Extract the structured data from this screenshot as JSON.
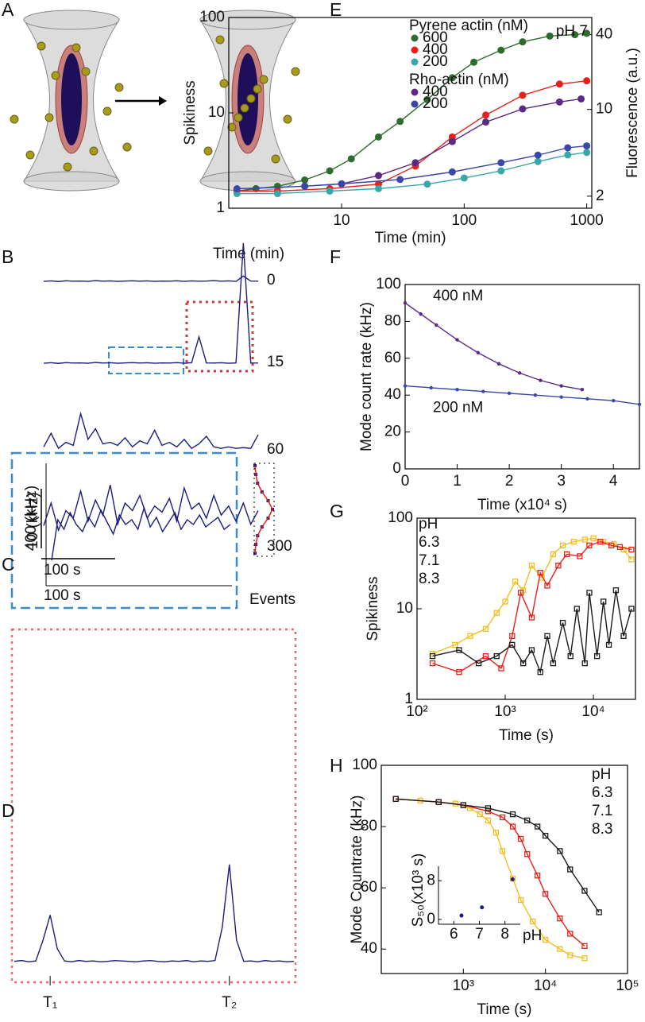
{
  "panel_a": {
    "label": "A"
  },
  "chart_data": [
    {
      "type": "trace",
      "label": "B",
      "title": "Time (min)",
      "scale_y_label": "400 (kHz)",
      "scale_x_label": "100 s",
      "series": [
        {
          "name": "0",
          "color": "#1c1c80",
          "values": [
            5,
            8,
            4,
            9,
            6,
            7,
            5,
            10,
            6,
            8,
            5,
            7,
            9,
            6,
            8,
            5,
            7,
            6,
            9,
            5,
            8,
            6,
            7,
            10,
            6,
            8,
            5,
            40,
            7,
            6
          ]
        },
        {
          "name": "15",
          "color": "#1c1c80",
          "values": [
            5,
            8,
            4,
            9,
            6,
            7,
            5,
            10,
            6,
            8,
            5,
            7,
            9,
            6,
            8,
            5,
            7,
            6,
            9,
            5,
            8,
            180,
            7,
            6,
            8,
            5,
            7,
            800,
            7,
            6
          ]
        },
        {
          "name": "60",
          "color": "#1c1c80",
          "values": [
            30,
            120,
            20,
            60,
            40,
            250,
            80,
            150,
            50,
            60,
            40,
            90,
            30,
            70,
            50,
            140,
            40,
            60,
            30,
            80,
            20,
            50,
            100,
            30,
            20,
            30,
            20,
            25,
            20,
            110
          ]
        },
        {
          "name": "300",
          "color": "#1c1c80",
          "values": [
            150,
            300,
            120,
            250,
            200,
            380,
            180,
            320,
            220,
            420,
            160,
            300,
            250,
            350,
            200,
            280,
            240,
            330,
            180,
            400,
            260,
            300,
            200,
            350,
            220,
            280,
            180,
            300,
            160,
            250
          ]
        }
      ]
    },
    {
      "type": "trace",
      "label": "C",
      "ylabel": "10 (kHz)",
      "xlabel": "100 s",
      "hist_label": "Events",
      "color": "#1c1c80",
      "values": [
        5,
        22,
        18,
        25,
        20,
        17,
        23,
        19,
        26,
        21,
        16,
        24,
        20,
        22,
        18,
        27,
        19,
        23,
        17,
        21,
        25,
        18,
        22,
        20,
        24,
        19,
        21,
        23,
        18,
        20
      ],
      "hist": [
        0,
        1,
        3,
        8,
        15,
        20,
        15,
        8,
        3,
        1,
        0
      ]
    },
    {
      "type": "trace",
      "label": "D",
      "color": "#1c1c80",
      "markers": [
        "T₁",
        "T₂"
      ],
      "values": [
        10,
        12,
        9,
        11,
        60,
        120,
        40,
        11,
        9,
        12,
        10,
        11,
        9,
        10,
        12,
        11,
        10,
        9,
        11,
        12,
        10,
        9,
        11,
        10,
        12,
        9,
        11,
        10,
        12,
        90,
        240,
        60,
        10,
        11,
        9,
        12,
        10,
        11,
        9,
        10
      ]
    },
    {
      "type": "scatter",
      "label": "E",
      "xlabel": "Time (min)",
      "ylabel": "Spikiness",
      "y2label": "Fluorescence (a.u.)",
      "annotation": "pH 7",
      "legend_titles": [
        "Pyrene actin (nM)",
        "Rho-actin (nM)"
      ],
      "xlog": true,
      "ylog": true,
      "y2log": true,
      "marker": "circle",
      "connect": true,
      "xlim": [
        1.2,
        1100
      ],
      "xticks": [
        10,
        100,
        1000
      ],
      "ylim": [
        1,
        100
      ],
      "yticks": [
        1,
        10,
        100
      ],
      "y2lim": [
        1.6,
        55
      ],
      "y2ticks": [
        2,
        10,
        40
      ],
      "series": [
        {
          "name": "600",
          "group": 0,
          "axis": "y2",
          "color": "#2e6b2e",
          "x": [
            1.4,
            2,
            3,
            5,
            8,
            12,
            20,
            30,
            50,
            80,
            120,
            200,
            300,
            500,
            800,
            1000
          ],
          "values": [
            2.2,
            2.3,
            2.4,
            2.7,
            3.2,
            4,
            6,
            8,
            12,
            18,
            24,
            30,
            35,
            39,
            40,
            41
          ]
        },
        {
          "name": "400",
          "group": 0,
          "axis": "y2",
          "color": "#e8201a",
          "x": [
            1.4,
            3,
            8,
            20,
            40,
            80,
            150,
            300,
            600,
            1000
          ],
          "values": [
            2.2,
            2.2,
            2.3,
            2.5,
            3.5,
            6,
            9,
            13,
            16,
            17
          ]
        },
        {
          "name": "200",
          "group": 0,
          "axis": "y2",
          "color": "#3aa6a6",
          "x": [
            1.4,
            3,
            8,
            20,
            50,
            100,
            200,
            400,
            700,
            1000
          ],
          "values": [
            2.1,
            2.1,
            2.2,
            2.3,
            2.5,
            2.8,
            3.2,
            3.8,
            4.3,
            4.5
          ]
        },
        {
          "name": "400",
          "group": 1,
          "color": "#5b2a86",
          "x": [
            5,
            10,
            20,
            40,
            80,
            150,
            300,
            600,
            900
          ],
          "values": [
            1.7,
            1.8,
            2.2,
            3,
            5,
            8,
            11,
            13,
            14
          ]
        },
        {
          "name": "200",
          "group": 1,
          "color": "#3a47a8",
          "x": [
            1.4,
            5,
            10,
            30,
            80,
            200,
            400,
            700,
            1000
          ],
          "values": [
            1.6,
            1.7,
            1.8,
            2,
            2.4,
            3,
            3.6,
            4.3,
            4.5
          ]
        }
      ]
    },
    {
      "type": "scatter",
      "label": "F",
      "xlabel": "Time (x10⁴ s)",
      "ylabel": "Mode count rate (kHz)",
      "marker": "dot",
      "connect": true,
      "xlim": [
        0,
        4.5
      ],
      "xticks": [
        0,
        1,
        2,
        3,
        4
      ],
      "ylim": [
        0,
        100
      ],
      "yticks": [
        0,
        20,
        40,
        60,
        80,
        100
      ],
      "series": [
        {
          "name": "400 nM",
          "color": "#5b2a86",
          "x": [
            0,
            0.3,
            0.6,
            1,
            1.4,
            1.8,
            2.2,
            2.6,
            3,
            3.4
          ],
          "values": [
            90,
            84,
            78,
            70,
            63,
            57,
            52,
            48,
            45,
            43
          ]
        },
        {
          "name": "200 nM",
          "color": "#3a47a8",
          "x": [
            0,
            0.5,
            1,
            1.5,
            2,
            2.5,
            3,
            3.5,
            4,
            4.5
          ],
          "values": [
            45,
            44,
            43,
            42,
            41,
            40,
            39,
            38,
            37,
            35
          ]
        }
      ]
    },
    {
      "type": "scatter",
      "label": "G",
      "xlabel": "Time (s)",
      "ylabel": "Spikiness",
      "legend_title": "pH",
      "xlog": true,
      "ylog": true,
      "marker": "square",
      "connect": true,
      "xlim": [
        100,
        30000
      ],
      "xticks": [
        {
          "value": 100,
          "label": "10²"
        },
        {
          "value": 1000,
          "label": "10³"
        },
        {
          "value": 10000,
          "label": "10⁴"
        }
      ],
      "ylim": [
        1,
        100
      ],
      "yticks": [
        1,
        10,
        100
      ],
      "series": [
        {
          "name": "6.3",
          "color": "#f5bd1f",
          "x": [
            150,
            270,
            400,
            600,
            800,
            1000,
            1300,
            1600,
            2000,
            2600,
            3500,
            4500,
            6000,
            8000,
            10000,
            13000,
            17000,
            22000,
            27000
          ],
          "values": [
            3.2,
            4,
            5,
            6,
            9,
            12,
            20,
            16,
            30,
            22,
            40,
            50,
            55,
            58,
            60,
            55,
            52,
            45,
            35
          ]
        },
        {
          "name": "7.1",
          "color": "#e8201a",
          "x": [
            150,
            300,
            600,
            900,
            1200,
            1500,
            2000,
            2500,
            3000,
            4000,
            5000,
            7000,
            9000,
            12000,
            16000,
            20000,
            27000
          ],
          "values": [
            2.5,
            2,
            3,
            2.2,
            5,
            15,
            8,
            25,
            18,
            30,
            40,
            38,
            50,
            55,
            50,
            48,
            45
          ]
        },
        {
          "name": "8.3",
          "color": "#1a1a1a",
          "x": [
            150,
            300,
            500,
            800,
            1200,
            1600,
            2000,
            2500,
            3000,
            3500,
            4500,
            5500,
            6500,
            8000,
            9000,
            11000,
            13000,
            15000,
            18000,
            22000,
            27000
          ],
          "values": [
            3,
            3.5,
            2.5,
            3,
            4,
            2.5,
            3.5,
            2,
            5,
            2.5,
            7,
            3,
            10,
            2.5,
            15,
            3,
            12,
            4,
            16,
            5,
            10
          ]
        }
      ]
    },
    {
      "type": "scatter",
      "label": "H",
      "xlabel": "Time (s)",
      "ylabel": "Mode Countrate (kHz)",
      "legend_title": "pH",
      "xlog": true,
      "marker": "square",
      "connect": true,
      "xlim": [
        100,
        100000
      ],
      "xticks": [
        {
          "value": 1000,
          "label": "10³"
        },
        {
          "value": 10000,
          "label": "10⁴"
        },
        {
          "value": 100000,
          "label": "10⁵"
        }
      ],
      "ylim": [
        32,
        100
      ],
      "yticks": [
        40,
        60,
        80,
        100
      ],
      "series": [
        {
          "name": "6.3",
          "color": "#f5bd1f",
          "x": [
            150,
            300,
            500,
            800,
            1200,
            1600,
            2000,
            2500,
            3000,
            4000,
            5000,
            7000,
            10000,
            15000,
            20000,
            30000
          ],
          "values": [
            89,
            88.5,
            88,
            87.5,
            86,
            84,
            82,
            78,
            72,
            63,
            56,
            49,
            43,
            40,
            38,
            37
          ]
        },
        {
          "name": "7.1",
          "color": "#e8201a",
          "x": [
            150,
            500,
            1000,
            2000,
            3000,
            4000,
            5000,
            6000,
            8000,
            10000,
            15000,
            20000,
            30000
          ],
          "values": [
            89,
            88,
            87,
            85,
            83,
            80,
            76,
            71,
            64,
            58,
            50,
            45,
            41
          ]
        },
        {
          "name": "8.3",
          "color": "#1a1a1a",
          "x": [
            150,
            500,
            1000,
            2000,
            4000,
            6000,
            8000,
            10000,
            15000,
            20000,
            30000,
            45000
          ],
          "values": [
            89,
            88,
            87,
            86,
            84,
            82,
            80,
            77,
            72,
            66,
            59,
            52
          ]
        }
      ],
      "inset": {
        "xlabel": "pH",
        "ylabel": "S₅₀(x10³ s)",
        "color": "#1c1c80",
        "xlim": [
          5.4,
          8.6
        ],
        "xticks": [
          6,
          7,
          8
        ],
        "ylim": [
          -1,
          11
        ],
        "yticks": [
          0,
          8
        ],
        "x": [
          6.3,
          7.1,
          8.3
        ],
        "values": [
          0.8,
          2.5,
          8.3
        ]
      }
    }
  ]
}
